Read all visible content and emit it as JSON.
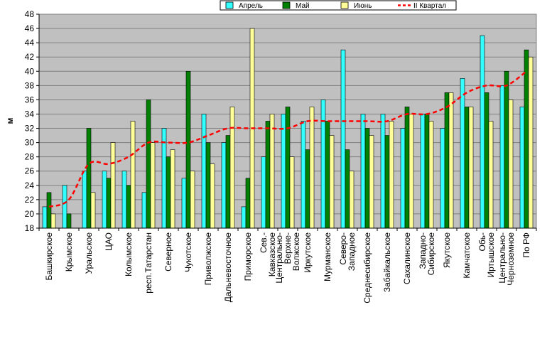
{
  "chart_data": {
    "type": "bar",
    "ylabel": "м",
    "ylim": [
      18,
      48
    ],
    "y_ticks": [
      18,
      20,
      22,
      24,
      26,
      28,
      30,
      32,
      34,
      36,
      38,
      40,
      42,
      44,
      46,
      48
    ],
    "grid": true,
    "legend_position": "top",
    "categories": [
      "Башкирское",
      "Крымское",
      "Уральское",
      "ЦАО",
      "Колымское",
      "респ.Татарстан",
      "Северное",
      "Чукотское",
      "Приволжское",
      "Дальневосточное",
      "Приморское",
      "Сев.-Кавказское",
      "Центрально-Верхне-Волжское",
      "Иркутское",
      "Мурманское",
      "Северо-Западное",
      "Среднесибирское",
      "Забайкальское",
      "Сахалинское",
      "Западно-Сибирское",
      "Якутское",
      "Камчатское",
      "Обь-Иртышское",
      "Центрально-Черноземное",
      "По РФ"
    ],
    "category_labels": [
      [
        "Башкирское"
      ],
      [
        "Крымское"
      ],
      [
        "Уральское"
      ],
      [
        "ЦАО"
      ],
      [
        "Колымское"
      ],
      [
        "респ.Татарстан"
      ],
      [
        "Северное"
      ],
      [
        "Чукотское"
      ],
      [
        "Приволжское"
      ],
      [
        "Дальневосточное"
      ],
      [
        "Приморское"
      ],
      [
        "Сев.-",
        "Кавказское"
      ],
      [
        "Центрально-",
        "Верхне-",
        "Волжское"
      ],
      [
        "Иркутское"
      ],
      [
        "Мурманское"
      ],
      [
        "Северо-",
        "Западное"
      ],
      [
        "Среднесибирское"
      ],
      [
        "Забайкальское"
      ],
      [
        "Сахалинское"
      ],
      [
        "Западно-",
        "Сибирское"
      ],
      [
        "Якутское"
      ],
      [
        "Камчатское"
      ],
      [
        "Обь-",
        "Иртышское"
      ],
      [
        "Центрально-",
        "Черноземное"
      ],
      [
        "По РФ"
      ]
    ],
    "series": [
      {
        "name": "Апрель",
        "type": "bar",
        "color": "#33ffff",
        "values": [
          21,
          24,
          26,
          26,
          26,
          23,
          32,
          25,
          34,
          30,
          21,
          28,
          34,
          33,
          36,
          43,
          34,
          34,
          32,
          34,
          32,
          39,
          45,
          38,
          35
        ]
      },
      {
        "name": "Май",
        "type": "bar",
        "color": "#008000",
        "values": [
          23,
          20,
          32,
          25,
          24,
          36,
          28,
          40,
          30,
          31,
          25,
          33,
          35,
          29,
          33,
          29,
          32,
          31,
          35,
          34,
          37,
          35,
          37,
          40,
          43
        ]
      },
      {
        "name": "Июнь",
        "type": "bar",
        "color": "#ffff99",
        "values": [
          20,
          18,
          23,
          30,
          33,
          30,
          29,
          26,
          27,
          35,
          46,
          34,
          28,
          35,
          31,
          26,
          31,
          33,
          34,
          33,
          37,
          35,
          33,
          36,
          42
        ]
      },
      {
        "name": "II Квартал",
        "type": "line",
        "color": "#ff0000",
        "values": [
          21,
          22,
          27,
          27,
          28,
          30,
          30,
          30,
          31,
          32,
          32,
          32,
          32,
          33,
          33,
          33,
          33,
          33,
          34,
          34,
          35,
          37,
          38,
          38,
          40
        ]
      }
    ]
  }
}
